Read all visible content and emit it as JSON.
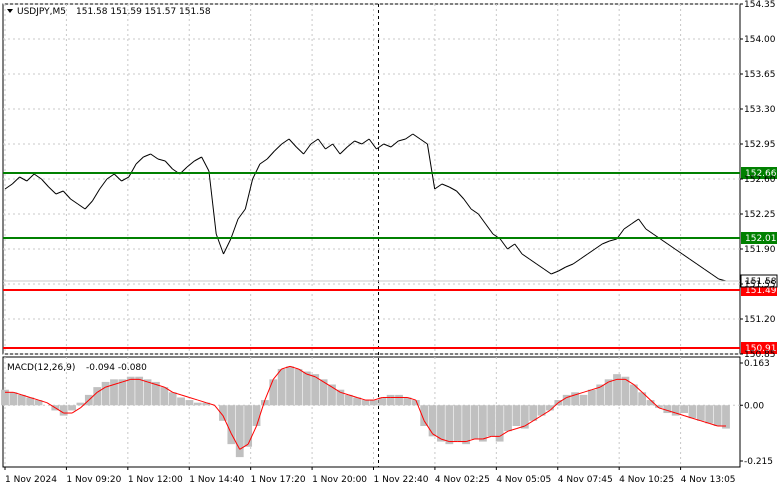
{
  "header": {
    "symbol": "USDJPY,M5",
    "ohlc": "151.58 151.59 151.57 151.58"
  },
  "macd_header": {
    "label": "MACD(12,26,9)",
    "values": "-0.094 -0.080"
  },
  "colors": {
    "price_line": "#000000",
    "resistance": "#008000",
    "support": "#ff0000",
    "macd_hist": "#c0c0c0",
    "macd_signal": "#ff0000",
    "grid": "#c8c8c8",
    "axis": "#000000"
  },
  "chart_data": [
    {
      "type": "line",
      "name": "price",
      "ylim": [
        150.85,
        154.35
      ],
      "y_ticks": [
        "154.35",
        "154.00",
        "153.65",
        "153.30",
        "152.95",
        "152.60",
        "152.25",
        "151.90",
        "151.55",
        "151.20",
        "150.85"
      ],
      "levels": [
        {
          "value": 152.66,
          "label": "152.66",
          "kind": "resistance"
        },
        {
          "value": 152.01,
          "label": "152.01",
          "kind": "resistance"
        },
        {
          "value": 151.49,
          "label": "151.49",
          "kind": "support"
        },
        {
          "value": 150.91,
          "label": "150.91",
          "kind": "support"
        }
      ],
      "current_price": {
        "value": 151.58,
        "label": "151.58"
      },
      "x_labels": [
        "1 Nov 2024",
        "1 Nov 09:20",
        "1 Nov 12:00",
        "1 Nov 14:40",
        "1 Nov 17:20",
        "1 Nov 20:00",
        "1 Nov 22:40",
        "4 Nov 02:25",
        "4 Nov 05:05",
        "4 Nov 07:45",
        "4 Nov 10:25",
        "4 Nov 13:05"
      ],
      "divider_at_label": "1 Nov 22:40",
      "values": [
        152.5,
        152.55,
        152.62,
        152.58,
        152.65,
        152.6,
        152.52,
        152.45,
        152.48,
        152.4,
        152.35,
        152.3,
        152.38,
        152.5,
        152.6,
        152.65,
        152.58,
        152.62,
        152.75,
        152.82,
        152.85,
        152.8,
        152.78,
        152.7,
        152.65,
        152.72,
        152.78,
        152.82,
        152.68,
        152.05,
        151.85,
        152.0,
        152.2,
        152.3,
        152.6,
        152.75,
        152.8,
        152.88,
        152.95,
        153.0,
        152.92,
        152.85,
        152.95,
        153.0,
        152.9,
        152.95,
        152.85,
        152.92,
        152.98,
        152.95,
        153.0,
        152.9,
        152.95,
        152.92,
        152.98,
        153.0,
        153.05,
        153.0,
        152.95,
        152.5,
        152.55,
        152.52,
        152.48,
        152.4,
        152.3,
        152.25,
        152.15,
        152.05,
        152.0,
        151.9,
        151.95,
        151.85,
        151.8,
        151.75,
        151.7,
        151.65,
        151.68,
        151.72,
        151.75,
        151.8,
        151.85,
        151.9,
        151.95,
        151.98,
        152.0,
        152.1,
        152.15,
        152.2,
        152.1,
        152.05,
        152.0,
        151.95,
        151.9,
        151.85,
        151.8,
        151.75,
        151.7,
        151.65,
        151.6,
        151.58
      ]
    },
    {
      "type": "bar",
      "name": "MACD(12,26,9)",
      "ylim": [
        -0.215,
        0.163
      ],
      "y_ticks": [
        "0.163",
        "0.00",
        "-0.215"
      ],
      "values": [
        0.06,
        0.05,
        0.04,
        0.03,
        0.02,
        0.0,
        -0.02,
        -0.04,
        -0.02,
        0.01,
        0.04,
        0.07,
        0.09,
        0.1,
        0.1,
        0.11,
        0.11,
        0.1,
        0.09,
        0.07,
        0.05,
        0.03,
        0.02,
        0.01,
        0.01,
        0.0,
        -0.06,
        -0.15,
        -0.2,
        -0.16,
        -0.08,
        0.02,
        0.1,
        0.14,
        0.15,
        0.14,
        0.13,
        0.12,
        0.1,
        0.08,
        0.06,
        0.04,
        0.03,
        0.02,
        0.02,
        0.03,
        0.04,
        0.04,
        0.03,
        0.02,
        -0.08,
        -0.12,
        -0.14,
        -0.15,
        -0.14,
        -0.15,
        -0.13,
        -0.14,
        -0.12,
        -0.14,
        -0.1,
        -0.08,
        -0.09,
        -0.06,
        -0.04,
        -0.02,
        0.02,
        0.04,
        0.05,
        0.04,
        0.06,
        0.08,
        0.1,
        0.12,
        0.11,
        0.08,
        0.05,
        0.02,
        -0.01,
        -0.03,
        -0.04,
        -0.03,
        -0.05,
        -0.06,
        -0.07,
        -0.08,
        -0.09
      ],
      "signal": [
        0.05,
        0.05,
        0.04,
        0.03,
        0.02,
        0.01,
        -0.01,
        -0.03,
        -0.03,
        -0.01,
        0.02,
        0.05,
        0.07,
        0.08,
        0.09,
        0.1,
        0.1,
        0.09,
        0.08,
        0.07,
        0.05,
        0.04,
        0.03,
        0.02,
        0.01,
        0.0,
        -0.04,
        -0.11,
        -0.17,
        -0.15,
        -0.08,
        0.02,
        0.1,
        0.14,
        0.15,
        0.14,
        0.12,
        0.11,
        0.09,
        0.07,
        0.05,
        0.04,
        0.03,
        0.02,
        0.02,
        0.03,
        0.03,
        0.03,
        0.03,
        0.02,
        -0.06,
        -0.11,
        -0.13,
        -0.14,
        -0.14,
        -0.14,
        -0.13,
        -0.13,
        -0.12,
        -0.12,
        -0.1,
        -0.09,
        -0.08,
        -0.06,
        -0.04,
        -0.02,
        0.01,
        0.03,
        0.04,
        0.05,
        0.06,
        0.07,
        0.09,
        0.1,
        0.1,
        0.08,
        0.05,
        0.02,
        -0.01,
        -0.02,
        -0.03,
        -0.04,
        -0.05,
        -0.06,
        -0.07,
        -0.08,
        -0.08
      ]
    }
  ]
}
